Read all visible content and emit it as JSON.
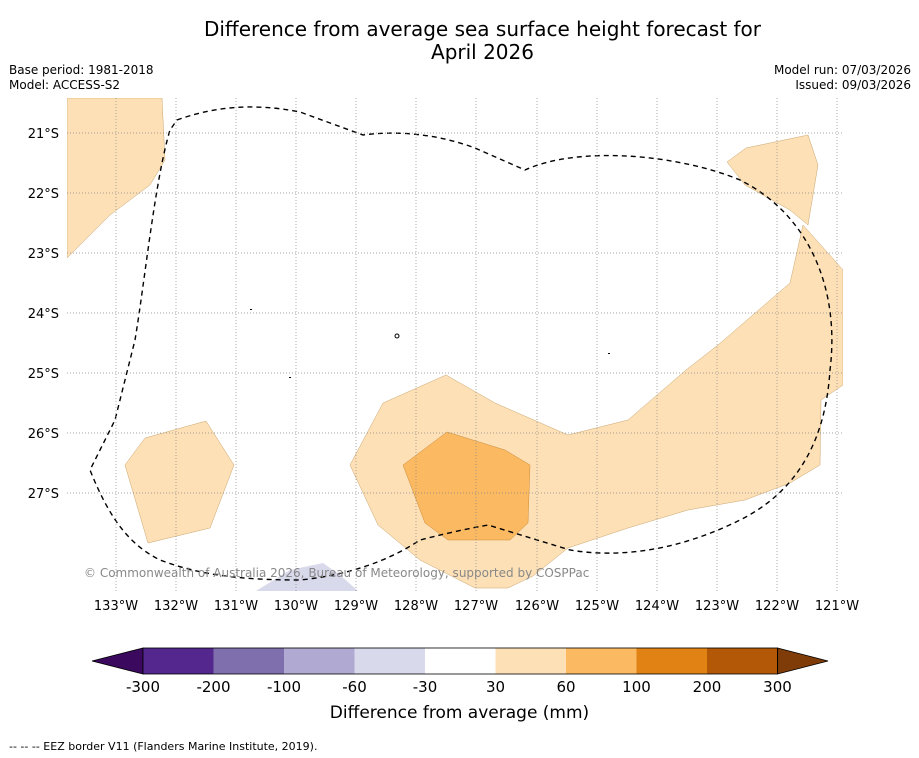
{
  "title": {
    "line1": "Difference from average sea surface height forecast for",
    "line2": "April 2026"
  },
  "meta": {
    "base_period": "Base period: 1981-2018",
    "model": "Model: ACCESS-S2",
    "model_run": "Model run: 07/03/2026",
    "issued": "Issued: 09/03/2026"
  },
  "map": {
    "lon_labels": [
      "133°W",
      "132°W",
      "131°W",
      "130°W",
      "129°W",
      "128°W",
      "127°W",
      "126°W",
      "125°W",
      "124°W",
      "123°W",
      "122°W",
      "121°W"
    ],
    "lat_labels": [
      "21°S",
      "22°S",
      "23°S",
      "24°S",
      "25°S",
      "26°S",
      "27°S"
    ],
    "copyright": "© Commonwealth of Australia 2026, Bureau of Meteorology, supported by COSPPac",
    "contour_colors": {
      "c30_60": "#fde0b6",
      "c60_100": "#fbb962",
      "cneg60_30": "#d9d9ec"
    }
  },
  "colorbar": {
    "ticks": [
      "-300",
      "-200",
      "-100",
      "-60",
      "-30",
      "30",
      "60",
      "100",
      "200",
      "300"
    ],
    "colors": [
      "#3b0a5e",
      "#54278f",
      "#7f70ad",
      "#b0a9d2",
      "#d9d9ec",
      "#ffffff",
      "#fde0b6",
      "#fbb962",
      "#e08214",
      "#b35806",
      "#7f3b08"
    ],
    "label": "Difference from average (mm)"
  },
  "footnote": "--  --  -- EEZ border V11 (Flanders Marine Institute, 2019)."
}
